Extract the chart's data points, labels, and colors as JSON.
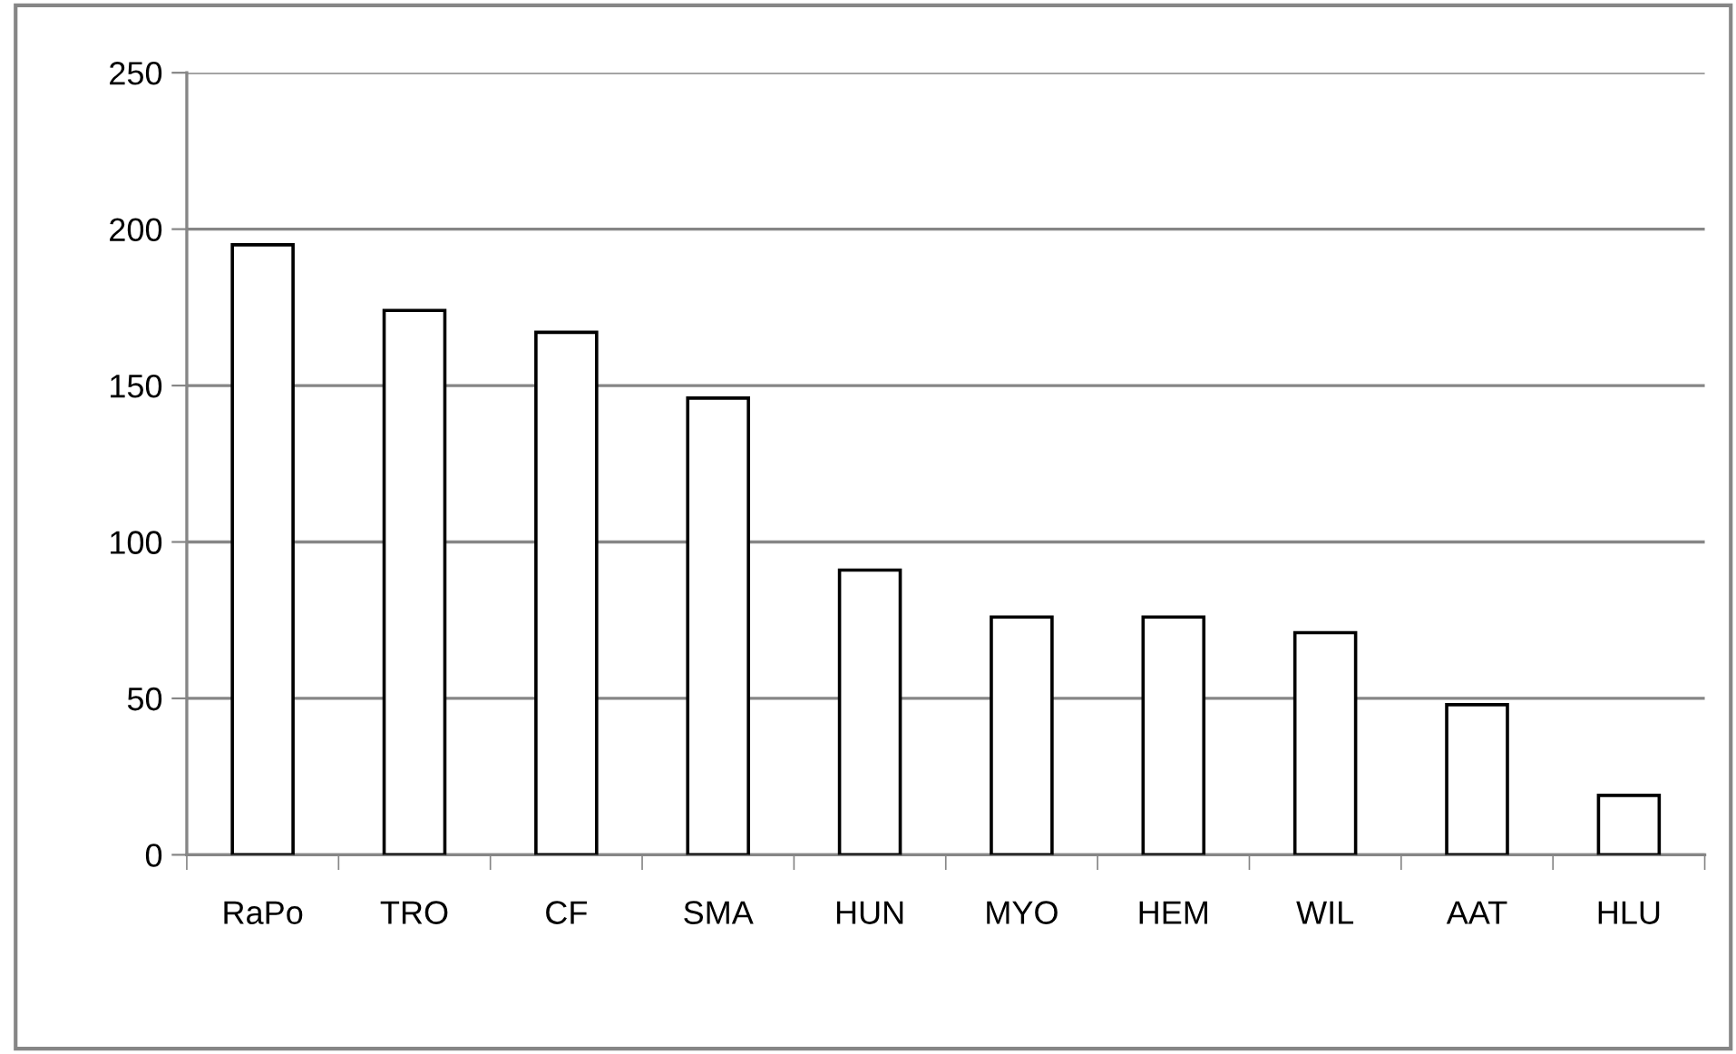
{
  "chart_data": {
    "type": "bar",
    "categories": [
      "RaPo",
      "TRO",
      "CF",
      "SMA",
      "HUN",
      "MYO",
      "HEM",
      "WIL",
      "AAT",
      "HLU"
    ],
    "values": [
      195,
      174,
      167,
      146,
      91,
      76,
      76,
      71,
      48,
      19
    ],
    "color": "#ffffff",
    "ylim": [
      0,
      250
    ],
    "yticks": [
      0,
      50,
      100,
      150,
      200,
      250
    ],
    "grid": "y"
  }
}
